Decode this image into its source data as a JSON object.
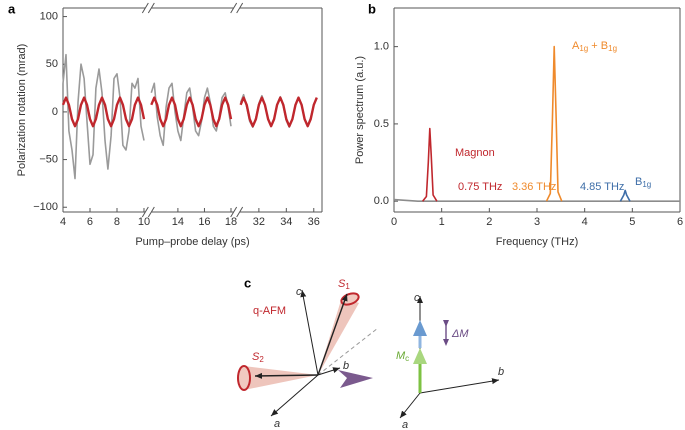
{
  "chart_data": [
    {
      "type": "line",
      "panel": "a",
      "ylabel": "Polarization rotation (mrad)",
      "xlabel": "Pump–probe delay (ps)",
      "ylim": [
        -105,
        109
      ],
      "yticks": [
        {
          "value": -100,
          "label": "−100"
        },
        {
          "value": -50,
          "label": "−50"
        },
        0,
        50,
        100
      ],
      "segments": [
        {
          "xlim": [
            4,
            10.1
          ],
          "xticks": [
            4,
            6,
            8,
            10
          ]
        },
        {
          "xlim": [
            12,
            18.2
          ],
          "xticks": [
            14,
            16,
            18
          ]
        },
        {
          "xlim": [
            30.6,
            36.6
          ],
          "xticks": [
            32,
            34,
            36
          ]
        }
      ],
      "x": [
        4.0,
        4.22,
        4.44,
        4.67,
        4.89,
        5.11,
        5.33,
        5.56,
        5.78,
        6.0,
        6.22,
        6.44,
        6.67,
        6.89,
        7.11,
        7.33,
        7.56,
        7.78,
        8.0,
        8.22,
        8.44,
        8.67,
        8.89,
        9.11,
        9.33,
        9.56,
        9.78,
        10.0,
        null,
        12.0,
        12.22,
        12.44,
        12.67,
        12.89,
        13.11,
        13.33,
        13.56,
        13.78,
        14.0,
        14.22,
        14.44,
        14.67,
        14.89,
        15.11,
        15.33,
        15.56,
        15.78,
        16.0,
        16.22,
        16.44,
        16.67,
        16.89,
        17.11,
        17.33,
        17.56,
        17.78,
        18.0,
        null,
        30.67,
        30.89,
        31.11,
        31.33,
        31.56,
        31.78,
        32.0,
        32.22,
        32.44,
        32.67,
        32.89,
        33.11,
        33.33,
        33.56,
        33.78,
        34.0,
        34.22,
        34.44,
        34.67,
        34.89,
        35.11,
        35.33,
        35.56,
        35.78,
        36.0,
        36.22
      ],
      "series": [
        {
          "color": "#9a9a9a",
          "values": [
            30,
            60,
            -20,
            -40,
            -70,
            10,
            50,
            35,
            -10,
            -55,
            -45,
            25,
            45,
            20,
            -30,
            -60,
            -25,
            35,
            40,
            15,
            -35,
            -40,
            -20,
            30,
            25,
            35,
            -15,
            -30,
            null,
            20,
            30,
            -5,
            -25,
            -35,
            5,
            25,
            30,
            0,
            -20,
            -30,
            -5,
            20,
            25,
            5,
            -20,
            -25,
            -10,
            15,
            25,
            10,
            -15,
            -20,
            -5,
            15,
            20,
            5,
            -15,
            null,
            10,
            18,
            5,
            -10,
            -16,
            -6,
            9,
            17,
            8,
            -8,
            -15,
            -7,
            8,
            16,
            6,
            -9,
            -16,
            -8,
            7,
            15,
            8,
            -7,
            -14,
            -6,
            8,
            14
          ]
        },
        {
          "color": "#c0272d",
          "values": [
            7.5,
            15,
            7.5,
            -7.5,
            -15,
            -7.5,
            7.5,
            15,
            7.5,
            -7.5,
            -15,
            -7.5,
            7.5,
            15,
            7.5,
            -7.5,
            -15,
            -7.5,
            7.5,
            15,
            7.5,
            -7.5,
            -15,
            -7.5,
            7.5,
            15,
            7.5,
            -7.5,
            null,
            7.5,
            15,
            7.5,
            -7.5,
            -15,
            -7.5,
            7.5,
            15,
            7.5,
            -7.5,
            -15,
            -7.5,
            7.5,
            15,
            7.5,
            -7.5,
            -15,
            -7.5,
            7.5,
            15,
            7.5,
            -7.5,
            -15,
            -7.5,
            7.5,
            15,
            7.5,
            -7.5,
            null,
            7.5,
            15,
            7.5,
            -7.5,
            -15,
            -7.5,
            7.5,
            15,
            7.5,
            -7.5,
            -15,
            -7.5,
            7.5,
            15,
            7.5,
            -7.5,
            -15,
            -7.5,
            7.5,
            15,
            7.5,
            -7.5,
            -15,
            -7.5,
            7.5,
            15
          ]
        }
      ]
    },
    {
      "type": "line",
      "panel": "b",
      "ylabel": "Power spectrum (a.u.)",
      "xlabel": "Frequency (THz)",
      "xlim": [
        0,
        6
      ],
      "xticks": [
        0,
        1,
        2,
        3,
        4,
        5,
        6
      ],
      "ylim": [
        -0.07,
        1.25
      ],
      "yticks": [
        {
          "value": 0,
          "label": "0.0"
        },
        0.5,
        {
          "value": 1,
          "label": "1.0"
        }
      ],
      "series": [
        {
          "color": "#8c8c8c",
          "x": [
            0,
            0.5,
            0.65,
            0.9,
            1.5,
            2,
            2.5,
            3,
            3.2,
            3.5,
            4,
            4.5,
            4.7,
            5,
            5.5,
            6
          ],
          "values": [
            0.01,
            0,
            0,
            0,
            0,
            0,
            0,
            0,
            0,
            0,
            0,
            0,
            0,
            0,
            0,
            0
          ]
        },
        {
          "color": "#c0272d",
          "x": [
            0.6,
            0.68,
            0.72,
            0.75,
            0.78,
            0.82,
            0.9
          ],
          "values": [
            0,
            0.03,
            0.25,
            0.47,
            0.3,
            0.04,
            0
          ]
        },
        {
          "color": "#ef8a2c",
          "x": [
            3.2,
            3.28,
            3.32,
            3.36,
            3.4,
            3.44,
            3.52
          ],
          "values": [
            0,
            0.05,
            0.5,
            1.0,
            0.55,
            0.06,
            0
          ]
        },
        {
          "color": "#3e6ea8",
          "x": [
            4.75,
            4.82,
            4.85,
            4.88,
            4.95
          ],
          "values": [
            0,
            0.04,
            0.07,
            0.04,
            0
          ]
        }
      ],
      "annotations": [
        {
          "parts": [
            "Magnon"
          ],
          "color": "#c0272d"
        },
        {
          "parts": [
            "0.75 THz"
          ],
          "color": "#c0272d"
        },
        {
          "parts": [
            "3.36 THz"
          ],
          "color": "#ef8a2c"
        },
        {
          "parts": [
            "4.85 THz"
          ],
          "color": "#3e6ea8"
        },
        {
          "parts": [
            "A",
            "1g",
            " + B",
            "1g"
          ],
          "color": "#ef8a2c"
        },
        {
          "parts": [
            "B",
            "1g"
          ],
          "color": "#3e6ea8"
        }
      ]
    }
  ],
  "diagram": {
    "panel": "c",
    "left_axes": [
      "c",
      "b",
      "a"
    ],
    "spins": [
      {
        "symbol": "S",
        "sub": "1"
      },
      {
        "symbol": "S",
        "sub": "2"
      }
    ],
    "phase": "q-AFM",
    "right_axes": [
      "c",
      "b",
      "a"
    ],
    "magnetization": {
      "symbol": "M",
      "sub": "c"
    },
    "change": "ΔM"
  }
}
